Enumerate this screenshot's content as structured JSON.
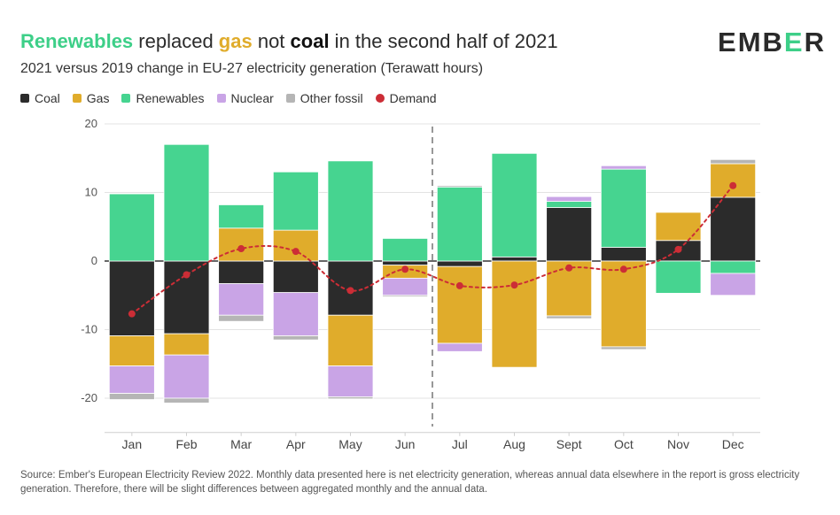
{
  "header": {
    "title_parts": [
      "Renewables",
      " replaced ",
      "gas",
      " not ",
      "coal",
      " in the second half of 2021"
    ],
    "subtitle": "2021 versus 2019 change in EU-27 electricity generation (Terawatt hours)",
    "logo": {
      "part1": "EMB",
      "part2": "E",
      "part3": "R"
    }
  },
  "source_note": "Source: Ember's European Electricity Review 2022. Monthly data presented here is net electricity generation, whereas annual data elsewhere in the report is gross electricity generation. Therefore, there will be slight differences between aggregated monthly and the annual data.",
  "colors": {
    "coal": "#2b2b2b",
    "gas": "#e0ac2b",
    "renewables": "#46d490",
    "nuclear": "#c9a4e6",
    "other_fossil": "#b5b5b5",
    "demand": "#cc2d36",
    "grid": "#e3e3e3",
    "divider": "#777777"
  },
  "chart_data": {
    "type": "bar",
    "stacked": true,
    "categories": [
      "Jan",
      "Feb",
      "Mar",
      "Apr",
      "May",
      "Jun",
      "Jul",
      "Aug",
      "Sept",
      "Oct",
      "Nov",
      "Dec"
    ],
    "series": [
      {
        "name": "Coal",
        "key": "coal",
        "values": [
          -10.9,
          -10.6,
          -3.3,
          -4.6,
          -7.9,
          -0.6,
          -0.8,
          0.6,
          7.8,
          2.0,
          3.0,
          9.3
        ]
      },
      {
        "name": "Gas",
        "key": "gas",
        "values": [
          -4.4,
          -3.1,
          4.8,
          4.5,
          -7.4,
          -1.9,
          -11.2,
          -15.5,
          -8.0,
          -12.5,
          4.1,
          4.9
        ]
      },
      {
        "name": "Renewables",
        "key": "renewables",
        "values": [
          9.8,
          17.0,
          3.4,
          8.5,
          14.6,
          3.3,
          10.8,
          15.1,
          0.9,
          11.4,
          -4.7,
          -1.8
        ]
      },
      {
        "name": "Nuclear",
        "key": "nuclear",
        "values": [
          -4.0,
          -6.3,
          -4.6,
          -6.3,
          -4.5,
          -2.5,
          -1.2,
          0,
          0.7,
          0.5,
          0,
          -3.2
        ]
      },
      {
        "name": "Other fossil",
        "key": "other_fossil",
        "values": [
          -0.9,
          -0.7,
          -0.9,
          -0.6,
          -0.3,
          -0.2,
          0.2,
          0,
          -0.4,
          -0.4,
          0,
          0.6
        ]
      }
    ],
    "demand": {
      "name": "Demand",
      "values": [
        -7.7,
        -2.0,
        1.8,
        1.4,
        -4.3,
        -1.2,
        -3.6,
        -3.5,
        -1.0,
        -1.2,
        1.7,
        11.0
      ]
    },
    "ylim": [
      -25,
      20
    ],
    "yticks": [
      -20,
      -10,
      0,
      10,
      20
    ],
    "divider_between": [
      "Jun",
      "Jul"
    ],
    "grid": true,
    "legend_position": "top-left"
  }
}
